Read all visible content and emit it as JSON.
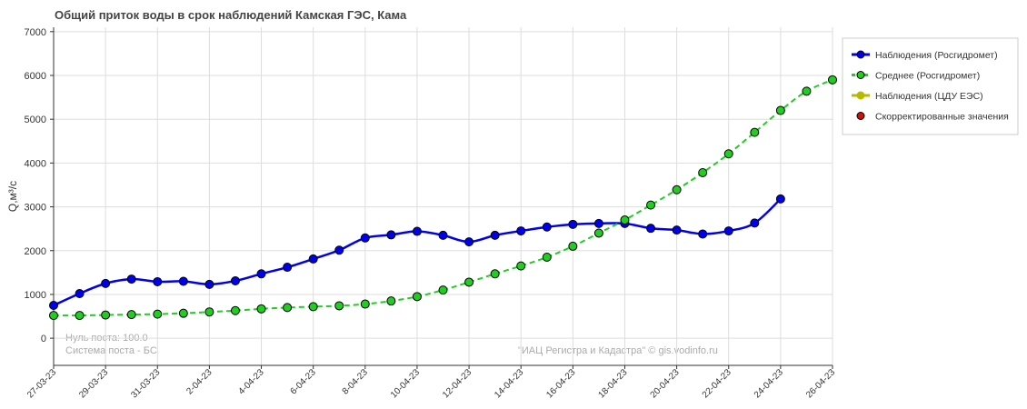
{
  "chart_data": {
    "type": "line",
    "title": "Общий приток воды в срок наблюдений Камская ГЭС,  Кама",
    "y_label": "Q,м³/с",
    "annotations": [
      "Нуль поста: 100.0",
      "Система поста - БС",
      "\"ИАЦ Регистра и Кадастра\" © gis.vodinfo.ru"
    ],
    "categories": [
      "27-03-23",
      null,
      "29-03-23",
      null,
      "31-03-23",
      null,
      "2-04-23",
      null,
      "4-04-23",
      null,
      "6-04-23",
      null,
      "8-04-23",
      null,
      "10-04-23",
      null,
      "12-04-23",
      null,
      "14-04-23",
      null,
      "16-04-23",
      null,
      "18-04-23",
      null,
      "20-04-23",
      null,
      "22-04-23",
      null,
      "24-04-23",
      null,
      "26-04-23"
    ],
    "series": [
      {
        "name": "Наблюдения (Росгидромет)",
        "color": "#0000ee",
        "style": "solid",
        "values": [
          750,
          1020,
          1250,
          1350,
          1290,
          1300,
          1230,
          1310,
          1470,
          1620,
          1810,
          2010,
          2290,
          2360,
          2440,
          2350,
          2200,
          2350,
          2450,
          2540,
          2600,
          2620,
          2620,
          2510,
          2470,
          2380,
          2450,
          2630,
          3180,
          null,
          null
        ]
      },
      {
        "name": "Среднее (Росгидромет)",
        "color": "#22cc22",
        "style": "dashed",
        "values": [
          520,
          520,
          530,
          540,
          550,
          570,
          600,
          630,
          670,
          700,
          720,
          740,
          780,
          850,
          950,
          1100,
          1280,
          1470,
          1650,
          1850,
          2100,
          2400,
          2700,
          3040,
          3390,
          3780,
          4210,
          4700,
          5200,
          5640,
          5900
        ]
      },
      {
        "name": "Наблюдения (ЦДУ ЕЭС)",
        "color": "#b8b800",
        "style": "solid",
        "values": [
          null,
          null,
          null,
          null,
          null,
          null,
          null,
          null,
          null,
          null,
          null,
          null,
          null,
          null,
          null,
          null,
          null,
          null,
          null,
          null,
          null,
          null,
          null,
          null,
          null,
          null,
          null,
          null,
          null,
          null,
          null
        ]
      },
      {
        "name": "Скорректированные значения",
        "color": "#cc1111",
        "style": "point",
        "values": [
          null,
          null,
          null,
          null,
          null,
          null,
          null,
          null,
          null,
          null,
          null,
          null,
          null,
          null,
          null,
          null,
          null,
          null,
          null,
          null,
          null,
          null,
          null,
          null,
          null,
          null,
          null,
          null,
          null,
          null,
          null
        ]
      }
    ],
    "ylim": [
      -620,
      7100
    ],
    "yticks": [
      0,
      1000,
      2000,
      3000,
      4000,
      5000,
      6000,
      7000
    ],
    "grid": true,
    "legend": "right"
  }
}
